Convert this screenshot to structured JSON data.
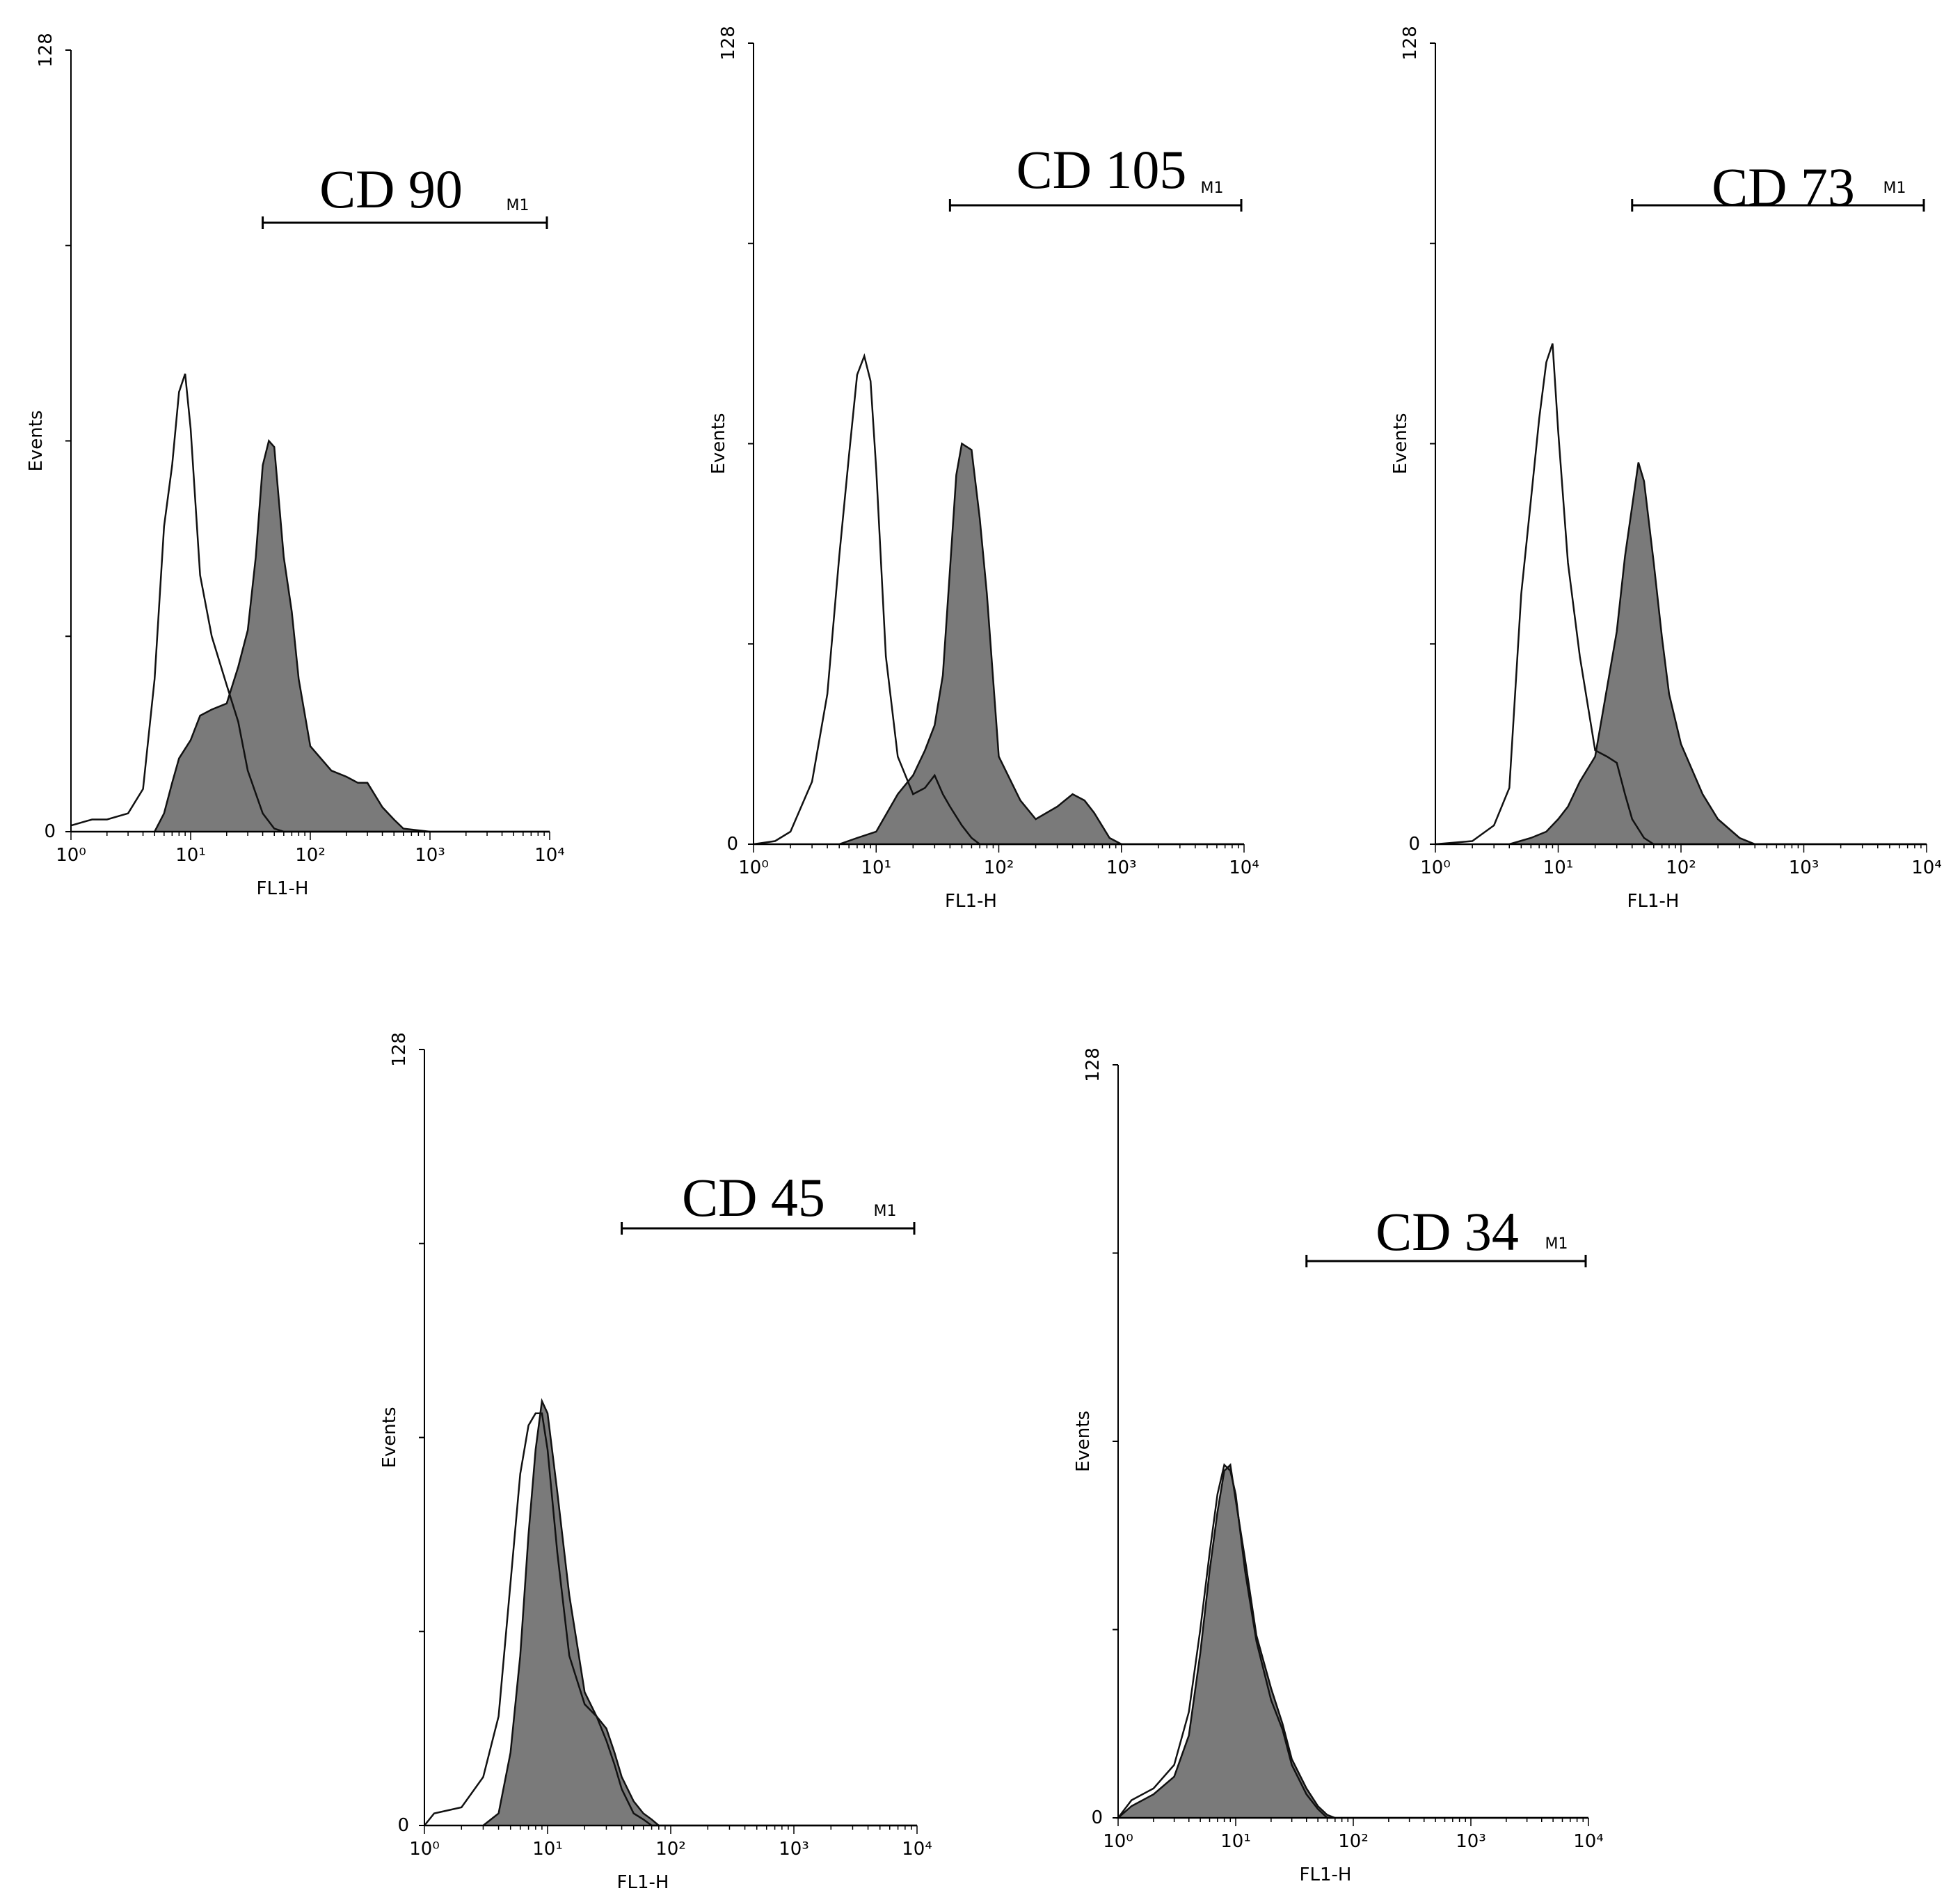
{
  "chart_data": [
    {
      "type": "area",
      "title": "CD 90",
      "xlabel": "FL1-H",
      "ylabel": "Events",
      "x_scale": "log",
      "xlim": [
        1,
        10000
      ],
      "ylim": [
        0,
        128
      ],
      "x_ticks": [
        "10⁰",
        "10¹",
        "10²",
        "10³",
        "10⁴"
      ],
      "y_ticks": [
        "0",
        "128"
      ],
      "marker": {
        "label": "M1",
        "range": [
          40,
          10000
        ]
      },
      "series": [
        {
          "style": "outline",
          "points": [
            [
              1,
              1
            ],
            [
              1.5,
              2
            ],
            [
              2,
              2
            ],
            [
              3,
              3
            ],
            [
              4,
              7
            ],
            [
              5,
              25
            ],
            [
              6,
              50
            ],
            [
              7,
              60
            ],
            [
              8,
              72
            ],
            [
              9,
              75
            ],
            [
              10,
              66
            ],
            [
              12,
              42
            ],
            [
              15,
              32
            ],
            [
              20,
              24
            ],
            [
              25,
              18
            ],
            [
              30,
              10
            ],
            [
              40,
              3
            ],
            [
              50,
              0.5
            ],
            [
              60,
              0
            ],
            [
              10000,
              0
            ]
          ]
        },
        {
          "style": "filled",
          "color": "#7a7a7a",
          "points": [
            [
              1,
              0
            ],
            [
              5,
              0
            ],
            [
              6,
              3
            ],
            [
              7,
              8
            ],
            [
              8,
              12
            ],
            [
              10,
              15
            ],
            [
              12,
              19
            ],
            [
              15,
              20
            ],
            [
              20,
              21
            ],
            [
              25,
              27
            ],
            [
              30,
              33
            ],
            [
              35,
              45
            ],
            [
              40,
              60
            ],
            [
              45,
              64
            ],
            [
              50,
              63
            ],
            [
              60,
              45
            ],
            [
              70,
              36
            ],
            [
              80,
              25
            ],
            [
              100,
              14
            ],
            [
              150,
              10
            ],
            [
              200,
              9
            ],
            [
              250,
              8
            ],
            [
              300,
              8
            ],
            [
              400,
              4
            ],
            [
              500,
              2
            ],
            [
              600,
              0.5
            ],
            [
              1000,
              0
            ],
            [
              10000,
              0
            ]
          ]
        }
      ]
    },
    {
      "type": "area",
      "title": "CD 105",
      "xlabel": "FL1-H",
      "ylabel": "Events",
      "x_scale": "log",
      "xlim": [
        1,
        10000
      ],
      "ylim": [
        0,
        128
      ],
      "x_ticks": [
        "10⁰",
        "10¹",
        "10²",
        "10³",
        "10⁴"
      ],
      "y_ticks": [
        "0",
        "128"
      ],
      "marker": {
        "label": "M1",
        "range": [
          40,
          10000
        ]
      },
      "series": [
        {
          "style": "outline",
          "points": [
            [
              1,
              0
            ],
            [
              1.5,
              0.5
            ],
            [
              2,
              2
            ],
            [
              3,
              10
            ],
            [
              4,
              24
            ],
            [
              5,
              46
            ],
            [
              6,
              62
            ],
            [
              7,
              75
            ],
            [
              8,
              78
            ],
            [
              9,
              74
            ],
            [
              10,
              60
            ],
            [
              12,
              30
            ],
            [
              15,
              14
            ],
            [
              20,
              8
            ],
            [
              25,
              9
            ],
            [
              30,
              11
            ],
            [
              35,
              8
            ],
            [
              40,
              6
            ],
            [
              50,
              3
            ],
            [
              60,
              1
            ],
            [
              70,
              0
            ],
            [
              10000,
              0
            ]
          ]
        },
        {
          "style": "filled",
          "color": "#7a7a7a",
          "points": [
            [
              1,
              0
            ],
            [
              5,
              0
            ],
            [
              7,
              1
            ],
            [
              10,
              2
            ],
            [
              15,
              8
            ],
            [
              20,
              11
            ],
            [
              25,
              15
            ],
            [
              30,
              19
            ],
            [
              35,
              27
            ],
            [
              40,
              44
            ],
            [
              45,
              59
            ],
            [
              50,
              64
            ],
            [
              60,
              63
            ],
            [
              70,
              52
            ],
            [
              80,
              40
            ],
            [
              100,
              14
            ],
            [
              150,
              7
            ],
            [
              200,
              4
            ],
            [
              300,
              6
            ],
            [
              400,
              8
            ],
            [
              500,
              7
            ],
            [
              600,
              5
            ],
            [
              800,
              1
            ],
            [
              1000,
              0
            ],
            [
              10000,
              0
            ]
          ]
        }
      ]
    },
    {
      "type": "area",
      "title": "CD 73",
      "xlabel": "FL1-H",
      "ylabel": "Events",
      "x_scale": "log",
      "xlim": [
        1,
        10000
      ],
      "ylim": [
        0,
        128
      ],
      "x_ticks": [
        "10⁰",
        "10¹",
        "10²",
        "10³",
        "10⁴"
      ],
      "y_ticks": [
        "0",
        "128"
      ],
      "marker": {
        "label": "M1",
        "range": [
          40,
          10000
        ]
      },
      "series": [
        {
          "style": "outline",
          "points": [
            [
              1,
              0
            ],
            [
              2,
              0.5
            ],
            [
              3,
              3
            ],
            [
              4,
              9
            ],
            [
              5,
              40
            ],
            [
              6,
              55
            ],
            [
              7,
              68
            ],
            [
              8,
              77
            ],
            [
              9,
              80
            ],
            [
              10,
              66
            ],
            [
              12,
              45
            ],
            [
              15,
              30
            ],
            [
              20,
              15
            ],
            [
              25,
              14
            ],
            [
              30,
              13
            ],
            [
              35,
              8
            ],
            [
              40,
              4
            ],
            [
              50,
              1
            ],
            [
              60,
              0
            ],
            [
              10000,
              0
            ]
          ]
        },
        {
          "style": "filled",
          "color": "#7a7a7a",
          "points": [
            [
              1,
              0
            ],
            [
              4,
              0
            ],
            [
              6,
              1
            ],
            [
              8,
              2
            ],
            [
              10,
              4
            ],
            [
              12,
              6
            ],
            [
              15,
              10
            ],
            [
              20,
              14
            ],
            [
              25,
              25
            ],
            [
              30,
              34
            ],
            [
              35,
              46
            ],
            [
              40,
              54
            ],
            [
              45,
              61
            ],
            [
              50,
              58
            ],
            [
              60,
              45
            ],
            [
              70,
              33
            ],
            [
              80,
              24
            ],
            [
              100,
              16
            ],
            [
              150,
              8
            ],
            [
              200,
              4
            ],
            [
              300,
              1
            ],
            [
              400,
              0
            ],
            [
              10000,
              0
            ]
          ]
        }
      ]
    },
    {
      "type": "area",
      "title": "CD 45",
      "xlabel": "FL1-H",
      "ylabel": "Events",
      "x_scale": "log",
      "xlim": [
        1,
        10000
      ],
      "ylim": [
        0,
        128
      ],
      "x_ticks": [
        "10⁰",
        "10¹",
        "10²",
        "10³",
        "10⁴"
      ],
      "y_ticks": [
        "0",
        "128"
      ],
      "marker": {
        "label": "M1",
        "range": [
          40,
          10000
        ]
      },
      "series": [
        {
          "style": "outline",
          "points": [
            [
              1,
              0
            ],
            [
              1.2,
              2
            ],
            [
              2,
              3
            ],
            [
              3,
              8
            ],
            [
              4,
              18
            ],
            [
              5,
              40
            ],
            [
              6,
              58
            ],
            [
              7,
              66
            ],
            [
              8,
              68
            ],
            [
              9,
              68
            ],
            [
              10,
              62
            ],
            [
              12,
              45
            ],
            [
              15,
              28
            ],
            [
              20,
              20
            ],
            [
              25,
              18
            ],
            [
              30,
              14
            ],
            [
              35,
              10
            ],
            [
              40,
              6
            ],
            [
              50,
              2
            ],
            [
              60,
              1
            ],
            [
              70,
              0
            ],
            [
              10000,
              0
            ]
          ]
        },
        {
          "style": "filled",
          "color": "#7a7a7a",
          "points": [
            [
              1,
              0
            ],
            [
              3,
              0
            ],
            [
              4,
              2
            ],
            [
              5,
              12
            ],
            [
              6,
              28
            ],
            [
              7,
              48
            ],
            [
              8,
              62
            ],
            [
              9,
              70
            ],
            [
              10,
              68
            ],
            [
              12,
              55
            ],
            [
              15,
              38
            ],
            [
              20,
              22
            ],
            [
              25,
              18
            ],
            [
              30,
              16
            ],
            [
              35,
              12
            ],
            [
              40,
              8
            ],
            [
              50,
              4
            ],
            [
              60,
              2
            ],
            [
              70,
              1
            ],
            [
              80,
              0
            ],
            [
              10000,
              0
            ]
          ]
        }
      ]
    },
    {
      "type": "area",
      "title": "CD 34",
      "xlabel": "FL1-H",
      "ylabel": "Events",
      "x_scale": "log",
      "xlim": [
        1,
        10000
      ],
      "ylim": [
        0,
        128
      ],
      "x_ticks": [
        "10⁰",
        "10¹",
        "10²",
        "10³",
        "10⁴"
      ],
      "y_ticks": [
        "0",
        "128"
      ],
      "marker": {
        "label": "M1",
        "range": [
          40,
          10000
        ]
      },
      "series": [
        {
          "style": "outline",
          "points": [
            [
              1,
              0
            ],
            [
              1.3,
              3
            ],
            [
              2,
              5
            ],
            [
              3,
              9
            ],
            [
              4,
              18
            ],
            [
              5,
              32
            ],
            [
              6,
              45
            ],
            [
              7,
              55
            ],
            [
              8,
              60
            ],
            [
              9,
              59
            ],
            [
              10,
              55
            ],
            [
              12,
              42
            ],
            [
              15,
              30
            ],
            [
              20,
              20
            ],
            [
              25,
              15
            ],
            [
              30,
              9
            ],
            [
              40,
              4
            ],
            [
              50,
              1.5
            ],
            [
              60,
              0
            ],
            [
              10000,
              0
            ]
          ]
        },
        {
          "style": "filled",
          "color": "#7a7a7a",
          "points": [
            [
              1,
              0
            ],
            [
              1.3,
              2
            ],
            [
              2,
              4
            ],
            [
              3,
              7
            ],
            [
              4,
              14
            ],
            [
              5,
              28
            ],
            [
              6,
              42
            ],
            [
              7,
              52
            ],
            [
              8,
              59
            ],
            [
              9,
              60
            ],
            [
              10,
              54
            ],
            [
              12,
              44
            ],
            [
              15,
              31
            ],
            [
              20,
              22
            ],
            [
              25,
              16
            ],
            [
              30,
              10
            ],
            [
              40,
              5
            ],
            [
              50,
              2
            ],
            [
              60,
              0.5
            ],
            [
              70,
              0
            ],
            [
              10000,
              0
            ]
          ]
        }
      ]
    }
  ]
}
